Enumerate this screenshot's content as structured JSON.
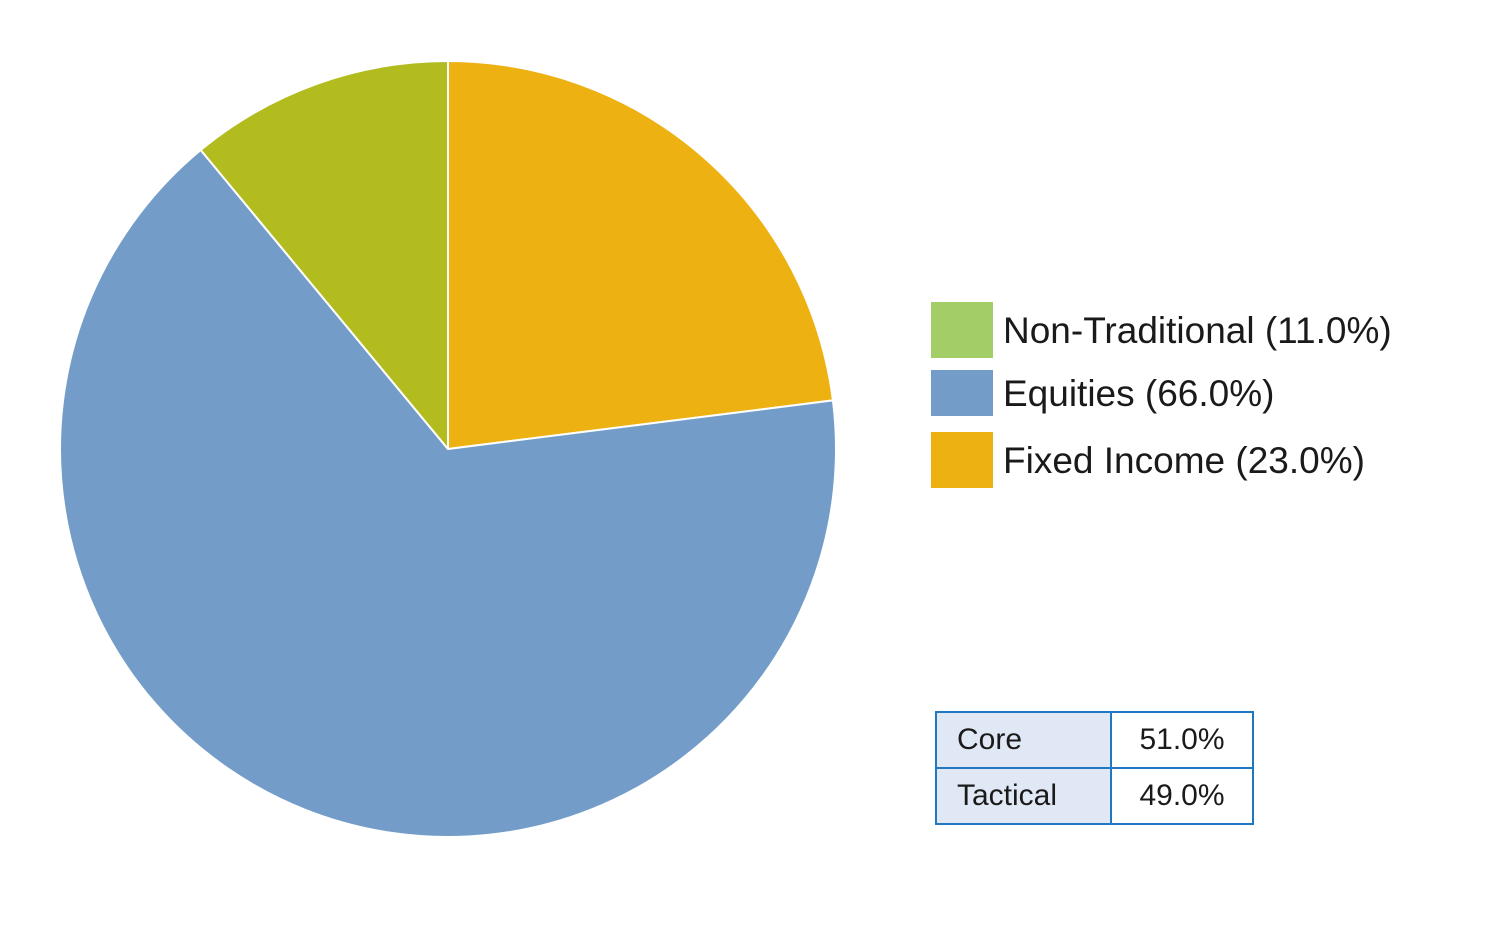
{
  "chart_data": {
    "type": "pie",
    "title": "",
    "start_angle_deg": 0,
    "direction": "clockwise",
    "slices": [
      {
        "name": "Fixed Income",
        "value": 23.0,
        "color": "#EEB112"
      },
      {
        "name": "Equities",
        "value": 66.0,
        "color": "#739DC8"
      },
      {
        "name": "Non-Traditional",
        "value": 11.0,
        "color": "#B2BC1F"
      }
    ],
    "legend": {
      "placement": "right",
      "items": [
        {
          "label": "Non-Traditional (11.0%)",
          "color": "#A2CD67"
        },
        {
          "label": "Equities (66.0%)",
          "color": "#739DC8"
        },
        {
          "label": "Fixed Income (23.0%)",
          "color": "#EEB112"
        }
      ]
    },
    "table": {
      "rows": [
        {
          "name": "Core",
          "value": "51.0%"
        },
        {
          "name": "Tactical",
          "value": "49.0%"
        }
      ]
    }
  }
}
